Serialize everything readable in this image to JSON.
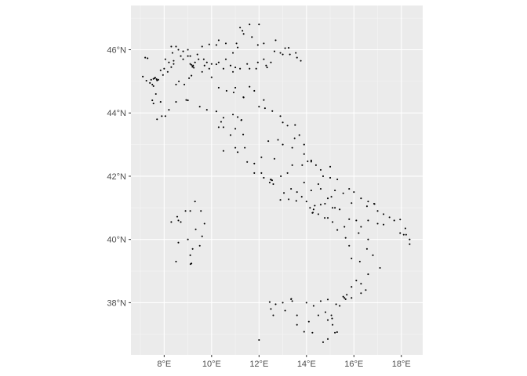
{
  "chart_data": {
    "type": "scatter",
    "title": "",
    "xlabel": "",
    "ylabel": "",
    "xlim": [
      6.6,
      18.9
    ],
    "ylim": [
      36.35,
      47.4
    ],
    "grid": true,
    "legend": "none",
    "x_ticks": [
      {
        "value": 8,
        "label": "8°E"
      },
      {
        "value": 10,
        "label": "10°E"
      },
      {
        "value": 12,
        "label": "12°E"
      },
      {
        "value": 14,
        "label": "14°E"
      },
      {
        "value": 16,
        "label": "16°E"
      },
      {
        "value": 18,
        "label": "18°E"
      }
    ],
    "y_ticks": [
      {
        "value": 38,
        "label": "38°N"
      },
      {
        "value": 40,
        "label": "40°N"
      },
      {
        "value": 42,
        "label": "42°N"
      },
      {
        "value": 44,
        "label": "44°N"
      },
      {
        "value": 46,
        "label": "46°N"
      }
    ],
    "colors": {
      "panel": "#ebebeb",
      "grid_major": "#ffffff",
      "grid_minor": "#f5f5f5",
      "point": "#000000",
      "tick_text": "#4d4d4d",
      "tick_mark": "#333333"
    },
    "points": [
      [
        7.3,
        45.73
      ],
      [
        7.2,
        45.75
      ],
      [
        7.1,
        45.15
      ],
      [
        7.25,
        45.02
      ],
      [
        7.45,
        45.05
      ],
      [
        7.55,
        45.08
      ],
      [
        7.6,
        45.1
      ],
      [
        7.68,
        45.07
      ],
      [
        7.7,
        45.03
      ],
      [
        7.62,
        45.12
      ],
      [
        7.75,
        45.05
      ],
      [
        7.5,
        44.9
      ],
      [
        7.4,
        44.95
      ],
      [
        7.55,
        44.85
      ],
      [
        7.65,
        44.6
      ],
      [
        7.5,
        44.4
      ],
      [
        7.55,
        44.3
      ],
      [
        7.85,
        44.35
      ],
      [
        7.7,
        43.8
      ],
      [
        7.9,
        43.9
      ],
      [
        7.95,
        45.2
      ],
      [
        7.85,
        45.35
      ],
      [
        8.0,
        45.4
      ],
      [
        8.15,
        45.3
      ],
      [
        8.3,
        45.45
      ],
      [
        8.4,
        45.55
      ],
      [
        8.2,
        45.6
      ],
      [
        8.05,
        45.7
      ],
      [
        8.35,
        45.9
      ],
      [
        8.3,
        46.1
      ],
      [
        8.6,
        46.0
      ],
      [
        8.8,
        45.95
      ],
      [
        8.7,
        45.8
      ],
      [
        8.8,
        45.7
      ],
      [
        9.0,
        45.8
      ],
      [
        9.1,
        45.8
      ],
      [
        9.2,
        45.47
      ],
      [
        9.19,
        45.46
      ],
      [
        9.22,
        45.5
      ],
      [
        9.15,
        45.52
      ],
      [
        9.25,
        45.43
      ],
      [
        9.1,
        45.55
      ],
      [
        9.3,
        45.6
      ],
      [
        9.45,
        45.7
      ],
      [
        9.67,
        45.7
      ],
      [
        9.8,
        45.6
      ],
      [
        9.7,
        45.5
      ],
      [
        9.9,
        45.4
      ],
      [
        10.0,
        45.55
      ],
      [
        10.2,
        45.54
      ],
      [
        10.3,
        45.6
      ],
      [
        10.5,
        45.4
      ],
      [
        10.6,
        45.7
      ],
      [
        10.8,
        45.5
      ],
      [
        11.0,
        45.44
      ],
      [
        10.9,
        45.3
      ],
      [
        11.2,
        45.4
      ],
      [
        11.5,
        45.55
      ],
      [
        11.6,
        45.4
      ],
      [
        11.88,
        45.4
      ],
      [
        11.95,
        45.6
      ],
      [
        12.2,
        45.7
      ],
      [
        12.3,
        45.5
      ],
      [
        12.34,
        45.44
      ],
      [
        12.5,
        45.6
      ],
      [
        12.65,
        45.95
      ],
      [
        12.9,
        45.9
      ],
      [
        13.1,
        46.05
      ],
      [
        13.25,
        46.06
      ],
      [
        13.3,
        45.85
      ],
      [
        13.55,
        45.9
      ],
      [
        13.76,
        45.65
      ],
      [
        13.6,
        45.75
      ],
      [
        13.0,
        45.85
      ],
      [
        12.7,
        46.3
      ],
      [
        12.2,
        46.2
      ],
      [
        11.95,
        46.15
      ],
      [
        11.7,
        46.4
      ],
      [
        11.35,
        46.5
      ],
      [
        11.2,
        46.7
      ],
      [
        11.6,
        46.8
      ],
      [
        12.0,
        46.8
      ],
      [
        11.3,
        46.6
      ],
      [
        11.1,
        46.07
      ],
      [
        11.05,
        46.2
      ],
      [
        10.9,
        45.9
      ],
      [
        10.6,
        46.2
      ],
      [
        10.3,
        46.3
      ],
      [
        10.2,
        46.15
      ],
      [
        9.9,
        46.17
      ],
      [
        9.6,
        46.1
      ],
      [
        9.4,
        45.85
      ],
      [
        9.0,
        46.0
      ],
      [
        8.5,
        46.1
      ],
      [
        8.4,
        45.65
      ],
      [
        8.62,
        45.0
      ],
      [
        8.5,
        44.9
      ],
      [
        8.85,
        44.9
      ],
      [
        9.05,
        45.1
      ],
      [
        9.15,
        45.18
      ],
      [
        9.6,
        45.3
      ],
      [
        10.0,
        45.13
      ],
      [
        10.3,
        44.8
      ],
      [
        10.63,
        44.7
      ],
      [
        10.93,
        44.65
      ],
      [
        11.0,
        44.8
      ],
      [
        11.34,
        44.5
      ],
      [
        11.35,
        44.49
      ],
      [
        11.6,
        44.83
      ],
      [
        11.8,
        44.7
      ],
      [
        12.2,
        44.41
      ],
      [
        12.0,
        44.2
      ],
      [
        12.25,
        44.15
      ],
      [
        12.56,
        44.06
      ],
      [
        12.9,
        43.9
      ],
      [
        13.0,
        43.7
      ],
      [
        13.2,
        43.6
      ],
      [
        13.52,
        43.62
      ],
      [
        13.7,
        43.3
      ],
      [
        13.9,
        43.0
      ],
      [
        14.2,
        42.5
      ],
      [
        14.05,
        42.47
      ],
      [
        14.4,
        42.35
      ],
      [
        14.6,
        42.2
      ],
      [
        14.7,
        42.0
      ],
      [
        15.0,
        41.95
      ],
      [
        15.3,
        41.9
      ],
      [
        15.55,
        41.46
      ],
      [
        15.8,
        41.6
      ],
      [
        16.0,
        41.5
      ],
      [
        16.6,
        41.2
      ],
      [
        16.87,
        41.12
      ],
      [
        16.85,
        41.13
      ],
      [
        17.0,
        40.9
      ],
      [
        17.25,
        40.8
      ],
      [
        17.5,
        40.7
      ],
      [
        17.7,
        40.6
      ],
      [
        17.95,
        40.63
      ],
      [
        18.17,
        40.35
      ],
      [
        18.2,
        40.15
      ],
      [
        18.35,
        40.0
      ],
      [
        18.35,
        39.85
      ],
      [
        18.1,
        40.15
      ],
      [
        17.95,
        40.2
      ],
      [
        17.25,
        40.47
      ],
      [
        17.0,
        40.5
      ],
      [
        16.6,
        40.6
      ],
      [
        16.3,
        40.4
      ],
      [
        16.2,
        40.2
      ],
      [
        16.6,
        40.0
      ],
      [
        16.55,
        39.7
      ],
      [
        16.8,
        39.5
      ],
      [
        17.1,
        39.1
      ],
      [
        16.6,
        38.9
      ],
      [
        16.3,
        38.6
      ],
      [
        16.5,
        38.4
      ],
      [
        16.3,
        38.3
      ],
      [
        15.9,
        38.15
      ],
      [
        15.65,
        38.11
      ],
      [
        15.7,
        38.25
      ],
      [
        15.9,
        38.5
      ],
      [
        16.1,
        38.7
      ],
      [
        16.25,
        39.3
      ],
      [
        15.9,
        39.4
      ],
      [
        15.8,
        39.8
      ],
      [
        15.65,
        40.05
      ],
      [
        15.3,
        40.3
      ],
      [
        15.1,
        40.55
      ],
      [
        14.9,
        40.68
      ],
      [
        14.77,
        40.68
      ],
      [
        14.5,
        40.8
      ],
      [
        14.27,
        40.85
      ],
      [
        14.25,
        40.84
      ],
      [
        14.3,
        40.95
      ],
      [
        14.15,
        41.0
      ],
      [
        14.35,
        41.07
      ],
      [
        14.6,
        41.1
      ],
      [
        14.78,
        41.13
      ],
      [
        14.9,
        41.3
      ],
      [
        15.1,
        41.0
      ],
      [
        15.4,
        40.95
      ],
      [
        15.8,
        40.64
      ],
      [
        15.6,
        40.4
      ],
      [
        16.1,
        40.6
      ],
      [
        15.0,
        42.3
      ],
      [
        14.2,
        42.46
      ],
      [
        13.82,
        42.35
      ],
      [
        13.4,
        42.35
      ],
      [
        13.2,
        42.1
      ],
      [
        12.92,
        42.0
      ],
      [
        12.5,
        41.9
      ],
      [
        12.49,
        41.89
      ],
      [
        12.55,
        41.87
      ],
      [
        12.6,
        41.75
      ],
      [
        12.45,
        41.8
      ],
      [
        12.2,
        41.95
      ],
      [
        12.1,
        42.1
      ],
      [
        11.8,
        42.1
      ],
      [
        11.5,
        42.45
      ],
      [
        11.1,
        42.76
      ],
      [
        11.4,
        42.9
      ],
      [
        11.33,
        43.32
      ],
      [
        11.0,
        43.5
      ],
      [
        11.25,
        43.77
      ],
      [
        11.26,
        43.78
      ],
      [
        11.1,
        43.87
      ],
      [
        10.9,
        43.95
      ],
      [
        10.5,
        43.85
      ],
      [
        10.4,
        43.72
      ],
      [
        10.5,
        43.55
      ],
      [
        10.3,
        43.55
      ],
      [
        10.2,
        44.05
      ],
      [
        9.8,
        44.1
      ],
      [
        9.5,
        44.2
      ],
      [
        9.0,
        44.4
      ],
      [
        8.93,
        44.41
      ],
      [
        8.5,
        44.35
      ],
      [
        8.2,
        44.1
      ],
      [
        8.05,
        43.9
      ],
      [
        10.8,
        43.3
      ],
      [
        10.5,
        42.8
      ],
      [
        11.0,
        42.9
      ],
      [
        11.8,
        42.4
      ],
      [
        12.1,
        42.6
      ],
      [
        12.65,
        42.55
      ],
      [
        12.39,
        43.11
      ],
      [
        12.8,
        43.15
      ],
      [
        13.0,
        43.0
      ],
      [
        13.4,
        42.9
      ],
      [
        13.5,
        43.2
      ],
      [
        13.9,
        42.7
      ],
      [
        14.5,
        41.75
      ],
      [
        14.2,
        41.55
      ],
      [
        13.9,
        41.8
      ],
      [
        13.6,
        41.5
      ],
      [
        13.35,
        41.6
      ],
      [
        13.05,
        41.47
      ],
      [
        12.9,
        41.25
      ],
      [
        13.25,
        41.27
      ],
      [
        13.57,
        41.22
      ],
      [
        13.8,
        41.35
      ],
      [
        14.0,
        41.2
      ],
      [
        14.6,
        41.6
      ],
      [
        15.2,
        41.55
      ],
      [
        15.05,
        41.35
      ],
      [
        15.2,
        41.0
      ],
      [
        15.9,
        41.15
      ],
      [
        16.3,
        41.3
      ],
      [
        16.55,
        41.05
      ],
      [
        13.36,
        38.12
      ],
      [
        13.35,
        38.11
      ],
      [
        13.4,
        38.05
      ],
      [
        13.0,
        38.0
      ],
      [
        12.5,
        37.8
      ],
      [
        12.6,
        37.6
      ],
      [
        12.45,
        38.02
      ],
      [
        12.7,
        37.95
      ],
      [
        13.1,
        37.75
      ],
      [
        13.6,
        37.3
      ],
      [
        13.9,
        37.08
      ],
      [
        14.25,
        37.05
      ],
      [
        14.7,
        36.75
      ],
      [
        14.9,
        36.85
      ],
      [
        15.2,
        37.05
      ],
      [
        15.29,
        37.07
      ],
      [
        15.1,
        37.3
      ],
      [
        15.08,
        37.5
      ],
      [
        15.05,
        37.6
      ],
      [
        14.9,
        37.45
      ],
      [
        14.5,
        37.6
      ],
      [
        14.3,
        37.9
      ],
      [
        14.1,
        37.4
      ],
      [
        13.6,
        37.6
      ],
      [
        14.0,
        38.0
      ],
      [
        14.6,
        38.05
      ],
      [
        14.9,
        38.1
      ],
      [
        15.55,
        38.19
      ],
      [
        15.6,
        38.15
      ],
      [
        15.4,
        37.9
      ],
      [
        15.25,
        37.95
      ],
      [
        14.8,
        37.7
      ],
      [
        12.0,
        36.82
      ],
      [
        8.55,
        40.72
      ],
      [
        8.6,
        40.6
      ],
      [
        8.7,
        40.55
      ],
      [
        8.9,
        40.9
      ],
      [
        9.1,
        40.9
      ],
      [
        9.33,
        40.32
      ],
      [
        9.0,
        40.0
      ],
      [
        9.1,
        39.5
      ],
      [
        9.11,
        39.22
      ],
      [
        9.15,
        39.24
      ],
      [
        8.5,
        39.3
      ],
      [
        8.6,
        39.9
      ],
      [
        9.2,
        39.7
      ],
      [
        9.5,
        39.8
      ],
      [
        9.6,
        40.1
      ],
      [
        9.3,
        41.2
      ],
      [
        9.55,
        40.9
      ],
      [
        9.7,
        40.5
      ],
      [
        8.3,
        40.55
      ]
    ]
  }
}
